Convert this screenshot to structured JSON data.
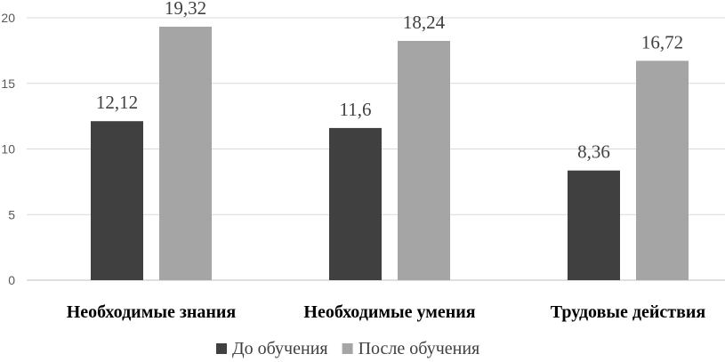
{
  "chart_data": {
    "type": "bar",
    "categories": [
      "Необходимые знания",
      "Необходимые умения",
      "Трудовые действия"
    ],
    "series": [
      {
        "name": "До обучения",
        "values": [
          12.12,
          11.6,
          8.36
        ],
        "labels": [
          "12,12",
          "11,6",
          "8,36"
        ],
        "color": "#404040"
      },
      {
        "name": "После обучения",
        "values": [
          19.32,
          18.24,
          16.72
        ],
        "labels": [
          "19,32",
          "18,24",
          "16,72"
        ],
        "color": "#a5a5a5"
      }
    ],
    "ylim": [
      0,
      20
    ],
    "yticks": [
      0,
      5,
      10,
      15,
      20
    ],
    "grid": true,
    "legend": "bottom",
    "title": "",
    "xlabel": "",
    "ylabel": ""
  }
}
